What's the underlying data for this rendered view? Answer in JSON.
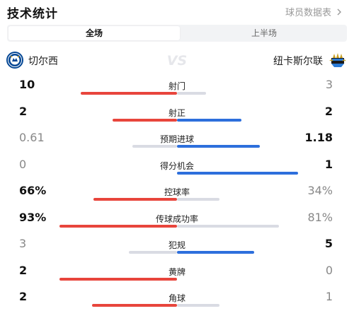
{
  "header": {
    "title": "技术统计",
    "report_link": "球员数据表"
  },
  "tabs": [
    {
      "label": "全场",
      "active": true
    },
    {
      "label": "上半场",
      "active": false
    }
  ],
  "teams": {
    "home": {
      "name": "切尔西"
    },
    "away": {
      "name": "纽卡斯尔联"
    }
  },
  "colors": {
    "home": "#e8453c",
    "away": "#2d6fdc",
    "track": "#d9dbe3"
  },
  "stats": [
    {
      "label": "射门",
      "home": "10",
      "away": "3",
      "home_frac": 1.0,
      "away_frac": 0.3,
      "home_bg": 1.0,
      "away_bg": 0.3,
      "home_win": true,
      "away_win": false,
      "home_color": "#e8453c",
      "away_color": "#d9dbe3"
    },
    {
      "label": "射正",
      "home": "2",
      "away": "2",
      "home_frac": 0.67,
      "away_frac": 0.67,
      "home_bg": 0.67,
      "away_bg": 0.67,
      "home_win": true,
      "away_win": true,
      "home_color": "#e8453c",
      "away_color": "#2d6fdc"
    },
    {
      "label": "预期进球",
      "home": "0.61",
      "away": "1.18",
      "home_frac": 0.46,
      "away_frac": 0.86,
      "home_bg": 0.46,
      "away_bg": 0.86,
      "home_win": false,
      "away_win": true,
      "home_color": "#d9dbe3",
      "away_color": "#2d6fdc"
    },
    {
      "label": "得分机会",
      "home": "0",
      "away": "1",
      "home_frac": 0.0,
      "away_frac": 1.26,
      "home_bg": 0.0,
      "away_bg": 1.26,
      "home_win": false,
      "away_win": true,
      "home_color": "#d9dbe3",
      "away_color": "#2d6fdc"
    },
    {
      "label": "控球率",
      "home": "66%",
      "away": "34%",
      "home_frac": 0.87,
      "away_frac": 0.44,
      "home_bg": 0.87,
      "away_bg": 0.44,
      "home_win": true,
      "away_win": false,
      "home_color": "#e8453c",
      "away_color": "#d9dbe3"
    },
    {
      "label": "传球成功率",
      "home": "93%",
      "away": "81%",
      "home_frac": 1.22,
      "away_frac": 1.06,
      "home_bg": 1.22,
      "away_bg": 1.06,
      "home_win": true,
      "away_win": false,
      "home_color": "#e8453c",
      "away_color": "#d9dbe3"
    },
    {
      "label": "犯规",
      "home": "3",
      "away": "5",
      "home_frac": 0.5,
      "away_frac": 0.8,
      "home_bg": 0.5,
      "away_bg": 0.8,
      "home_win": false,
      "away_win": true,
      "home_color": "#d9dbe3",
      "away_color": "#2d6fdc"
    },
    {
      "label": "黄牌",
      "home": "2",
      "away": "0",
      "home_frac": 1.22,
      "away_frac": 0.0,
      "home_bg": 1.22,
      "away_bg": 0.0,
      "home_win": true,
      "away_win": false,
      "home_color": "#e8453c",
      "away_color": "#d9dbe3"
    },
    {
      "label": "角球",
      "home": "2",
      "away": "1",
      "home_frac": 0.88,
      "away_frac": 0.44,
      "home_bg": 0.88,
      "away_bg": 0.44,
      "home_win": true,
      "away_win": false,
      "home_color": "#e8453c",
      "away_color": "#d9dbe3"
    }
  ]
}
